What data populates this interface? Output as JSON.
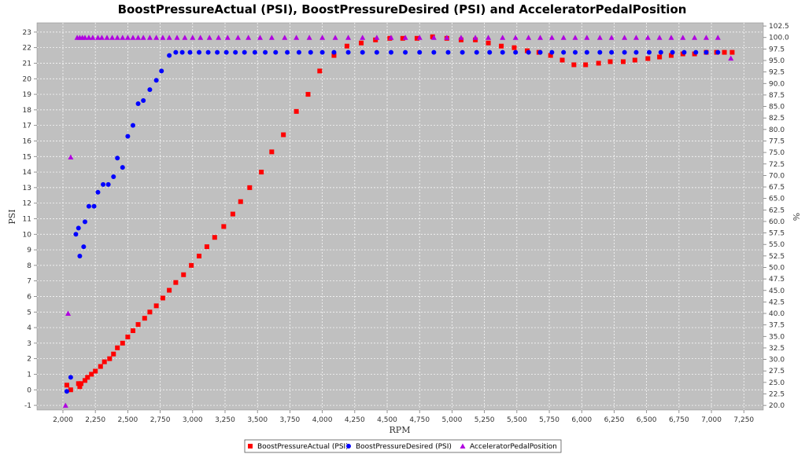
{
  "chart_data": {
    "type": "scatter",
    "title": "BoostPressureActual (PSI), BoostPressureDesired (PSI) and AcceleratorPedalPosition",
    "xlabel": "RPM",
    "ylabel": "PSI",
    "y2label": "%",
    "xlim": [
      1800,
      7400
    ],
    "ylim": [
      -1.3,
      23.6
    ],
    "y2lim": [
      19.0,
      103.2
    ],
    "xticks": [
      2000,
      2250,
      2500,
      2750,
      3000,
      3250,
      3500,
      3750,
      4000,
      4250,
      4500,
      4750,
      5000,
      5250,
      5500,
      5750,
      6000,
      6250,
      6500,
      6750,
      7000,
      7250
    ],
    "xtick_labels": [
      "2,000",
      "2,250",
      "2,500",
      "2,750",
      "3,000",
      "3,250",
      "3,500",
      "3,750",
      "4,000",
      "4,250",
      "4,500",
      "4,750",
      "5,000",
      "5,250",
      "5,500",
      "5,750",
      "6,000",
      "6,250",
      "6,500",
      "6,750",
      "7,000",
      "7,250"
    ],
    "yticks": [
      -1,
      0,
      1,
      2,
      3,
      4,
      5,
      6,
      7,
      8,
      9,
      10,
      11,
      12,
      13,
      14,
      15,
      16,
      17,
      18,
      19,
      20,
      21,
      22,
      23
    ],
    "y2ticks": [
      "20.0",
      "22.5",
      "25.0",
      "27.5",
      "30.0",
      "32.5",
      "35.0",
      "37.5",
      "40.0",
      "42.5",
      "45.0",
      "47.5",
      "50.0",
      "52.5",
      "55.0",
      "57.5",
      "60.0",
      "62.5",
      "65.0",
      "67.5",
      "70.0",
      "72.5",
      "75.0",
      "77.5",
      "80.0",
      "82.5",
      "85.0",
      "87.5",
      "90.0",
      "92.5",
      "95.0",
      "97.5",
      "100.0",
      "102.5"
    ],
    "grid": true,
    "legend_position": "bottom",
    "plot_background": "#c0c0c0",
    "series": [
      {
        "name": "BoostPressureActual (PSI)",
        "axis": "left",
        "marker": "square",
        "color": "#ff0000",
        "points": [
          [
            2030,
            0.3
          ],
          [
            2060,
            0.0
          ],
          [
            2120,
            0.4
          ],
          [
            2130,
            0.2
          ],
          [
            2140,
            0.4
          ],
          [
            2170,
            0.6
          ],
          [
            2190,
            0.8
          ],
          [
            2220,
            1.0
          ],
          [
            2250,
            1.2
          ],
          [
            2290,
            1.5
          ],
          [
            2320,
            1.8
          ],
          [
            2360,
            2.0
          ],
          [
            2390,
            2.3
          ],
          [
            2420,
            2.7
          ],
          [
            2460,
            3.0
          ],
          [
            2500,
            3.4
          ],
          [
            2540,
            3.8
          ],
          [
            2580,
            4.2
          ],
          [
            2630,
            4.6
          ],
          [
            2670,
            5.0
          ],
          [
            2720,
            5.4
          ],
          [
            2770,
            5.9
          ],
          [
            2820,
            6.4
          ],
          [
            2870,
            6.9
          ],
          [
            2930,
            7.4
          ],
          [
            2990,
            8.0
          ],
          [
            3050,
            8.6
          ],
          [
            3110,
            9.2
          ],
          [
            3170,
            9.8
          ],
          [
            3240,
            10.5
          ],
          [
            3310,
            11.3
          ],
          [
            3370,
            12.1
          ],
          [
            3440,
            13.0
          ],
          [
            3530,
            14.0
          ],
          [
            3610,
            15.3
          ],
          [
            3700,
            16.4
          ],
          [
            3800,
            17.9
          ],
          [
            3890,
            19.0
          ],
          [
            3980,
            20.5
          ],
          [
            4090,
            21.5
          ],
          [
            4190,
            22.1
          ],
          [
            4300,
            22.3
          ],
          [
            4410,
            22.5
          ],
          [
            4520,
            22.6
          ],
          [
            4620,
            22.6
          ],
          [
            4730,
            22.6
          ],
          [
            4850,
            22.7
          ],
          [
            4960,
            22.6
          ],
          [
            5070,
            22.5
          ],
          [
            5180,
            22.5
          ],
          [
            5280,
            22.3
          ],
          [
            5380,
            22.1
          ],
          [
            5480,
            22.0
          ],
          [
            5580,
            21.8
          ],
          [
            5670,
            21.7
          ],
          [
            5760,
            21.5
          ],
          [
            5850,
            21.2
          ],
          [
            5940,
            20.9
          ],
          [
            6030,
            20.9
          ],
          [
            6130,
            21.0
          ],
          [
            6220,
            21.1
          ],
          [
            6320,
            21.1
          ],
          [
            6410,
            21.2
          ],
          [
            6510,
            21.3
          ],
          [
            6600,
            21.4
          ],
          [
            6690,
            21.5
          ],
          [
            6780,
            21.6
          ],
          [
            6870,
            21.6
          ],
          [
            6960,
            21.7
          ],
          [
            7040,
            21.7
          ],
          [
            7100,
            21.7
          ],
          [
            7160,
            21.7
          ]
        ]
      },
      {
        "name": "BoostPressureDesired (PSI)",
        "axis": "left",
        "marker": "circle",
        "color": "#0000ff",
        "points": [
          [
            2030,
            -0.1
          ],
          [
            2060,
            0.8
          ],
          [
            2100,
            10.0
          ],
          [
            2120,
            10.4
          ],
          [
            2130,
            8.6
          ],
          [
            2160,
            9.2
          ],
          [
            2170,
            10.8
          ],
          [
            2200,
            11.8
          ],
          [
            2240,
            11.8
          ],
          [
            2270,
            12.7
          ],
          [
            2310,
            13.2
          ],
          [
            2350,
            13.2
          ],
          [
            2390,
            13.7
          ],
          [
            2420,
            14.9
          ],
          [
            2460,
            14.3
          ],
          [
            2500,
            16.3
          ],
          [
            2540,
            17.0
          ],
          [
            2580,
            18.4
          ],
          [
            2620,
            18.6
          ],
          [
            2670,
            19.3
          ],
          [
            2720,
            19.9
          ],
          [
            2760,
            20.5
          ],
          [
            2820,
            21.5
          ],
          [
            2870,
            21.7
          ],
          [
            2920,
            21.7
          ],
          [
            2980,
            21.7
          ],
          [
            3050,
            21.7
          ],
          [
            3120,
            21.7
          ],
          [
            3190,
            21.7
          ],
          [
            3260,
            21.7
          ],
          [
            3330,
            21.7
          ],
          [
            3400,
            21.7
          ],
          [
            3480,
            21.7
          ],
          [
            3560,
            21.7
          ],
          [
            3640,
            21.7
          ],
          [
            3730,
            21.7
          ],
          [
            3820,
            21.7
          ],
          [
            3910,
            21.7
          ],
          [
            4000,
            21.7
          ],
          [
            4090,
            21.7
          ],
          [
            4200,
            21.7
          ],
          [
            4310,
            21.7
          ],
          [
            4420,
            21.7
          ],
          [
            4530,
            21.7
          ],
          [
            4640,
            21.7
          ],
          [
            4750,
            21.7
          ],
          [
            4860,
            21.7
          ],
          [
            4970,
            21.7
          ],
          [
            5080,
            21.7
          ],
          [
            5190,
            21.7
          ],
          [
            5290,
            21.7
          ],
          [
            5390,
            21.7
          ],
          [
            5490,
            21.7
          ],
          [
            5590,
            21.7
          ],
          [
            5680,
            21.7
          ],
          [
            5770,
            21.7
          ],
          [
            5860,
            21.7
          ],
          [
            5950,
            21.7
          ],
          [
            6040,
            21.7
          ],
          [
            6140,
            21.7
          ],
          [
            6230,
            21.7
          ],
          [
            6330,
            21.7
          ],
          [
            6420,
            21.7
          ],
          [
            6520,
            21.7
          ],
          [
            6610,
            21.7
          ],
          [
            6700,
            21.7
          ],
          [
            6790,
            21.7
          ],
          [
            6880,
            21.7
          ],
          [
            6960,
            21.7
          ],
          [
            7050,
            21.7
          ]
        ]
      },
      {
        "name": "AcceleratorPedalPosition",
        "axis": "right",
        "marker": "triangle",
        "color": "#b000e0",
        "points": [
          [
            2020,
            20.0
          ],
          [
            2040,
            40.0
          ],
          [
            2060,
            74.0
          ],
          [
            2110,
            100.0
          ],
          [
            2130,
            100.0
          ],
          [
            2150,
            100.0
          ],
          [
            2170,
            100.0
          ],
          [
            2200,
            100.0
          ],
          [
            2230,
            100.0
          ],
          [
            2270,
            100.0
          ],
          [
            2300,
            100.0
          ],
          [
            2340,
            100.0
          ],
          [
            2380,
            100.0
          ],
          [
            2420,
            100.0
          ],
          [
            2460,
            100.0
          ],
          [
            2500,
            100.0
          ],
          [
            2540,
            100.0
          ],
          [
            2580,
            100.0
          ],
          [
            2620,
            100.0
          ],
          [
            2670,
            100.0
          ],
          [
            2720,
            100.0
          ],
          [
            2770,
            100.0
          ],
          [
            2820,
            100.0
          ],
          [
            2880,
            100.0
          ],
          [
            2940,
            100.0
          ],
          [
            3000,
            100.0
          ],
          [
            3060,
            100.0
          ],
          [
            3130,
            100.0
          ],
          [
            3200,
            100.0
          ],
          [
            3270,
            100.0
          ],
          [
            3350,
            100.0
          ],
          [
            3430,
            100.0
          ],
          [
            3520,
            100.0
          ],
          [
            3610,
            100.0
          ],
          [
            3710,
            100.0
          ],
          [
            3800,
            100.0
          ],
          [
            3900,
            100.0
          ],
          [
            4000,
            100.0
          ],
          [
            4100,
            100.0
          ],
          [
            4200,
            100.0
          ],
          [
            4310,
            100.0
          ],
          [
            4420,
            100.0
          ],
          [
            4530,
            100.0
          ],
          [
            4640,
            100.0
          ],
          [
            4750,
            100.0
          ],
          [
            4860,
            100.0
          ],
          [
            4960,
            100.0
          ],
          [
            5070,
            100.0
          ],
          [
            5180,
            100.0
          ],
          [
            5280,
            100.0
          ],
          [
            5390,
            100.0
          ],
          [
            5490,
            100.0
          ],
          [
            5590,
            100.0
          ],
          [
            5680,
            100.0
          ],
          [
            5770,
            100.0
          ],
          [
            5860,
            100.0
          ],
          [
            5950,
            100.0
          ],
          [
            6040,
            100.0
          ],
          [
            6140,
            100.0
          ],
          [
            6230,
            100.0
          ],
          [
            6330,
            100.0
          ],
          [
            6420,
            100.0
          ],
          [
            6510,
            100.0
          ],
          [
            6600,
            100.0
          ],
          [
            6690,
            100.0
          ],
          [
            6780,
            100.0
          ],
          [
            6870,
            100.0
          ],
          [
            6960,
            100.0
          ],
          [
            7050,
            100.0
          ],
          [
            7150,
            95.5
          ]
        ]
      }
    ]
  }
}
